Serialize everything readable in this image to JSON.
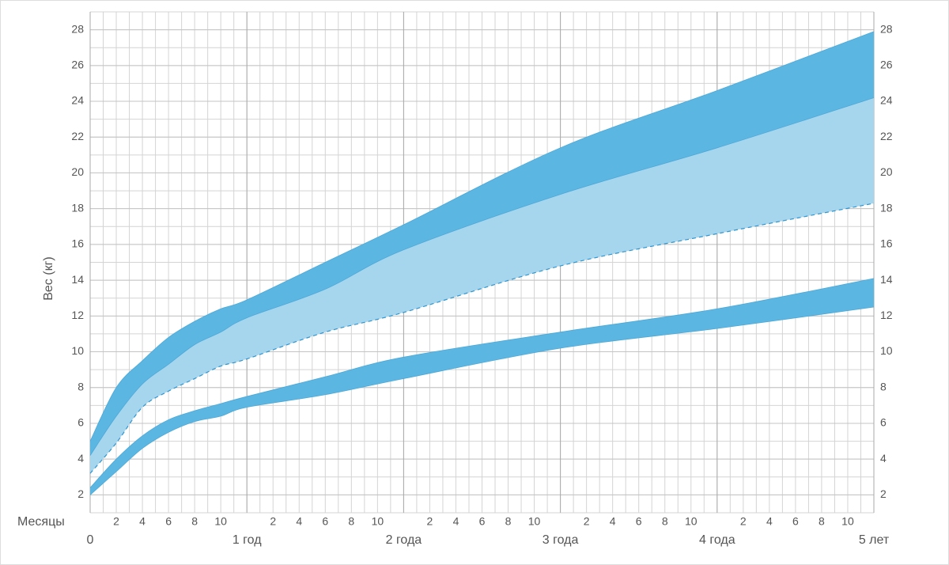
{
  "chart_data": {
    "type": "band-line",
    "ylabel": "Вес (кг)",
    "xlabel": "Месяцы",
    "x": [
      0,
      2,
      4,
      6,
      8,
      10,
      12,
      18,
      24,
      36,
      48,
      60
    ],
    "series": [
      {
        "color": "#4aa8d8",
        "fill": "#5cb6e2",
        "values": [
          5.0,
          8.0,
          9.5,
          10.8,
          11.7,
          12.4,
          12.9,
          15.0,
          17.1,
          21.4,
          24.6,
          27.9
        ]
      },
      {
        "color": "#4aa8d8",
        "fill": "#a6d5ee",
        "values": [
          4.2,
          6.4,
          8.2,
          9.3,
          10.4,
          11.1,
          11.9,
          13.5,
          15.7,
          18.8,
          21.4,
          24.2
        ]
      },
      {
        "color": "#2f95cf",
        "dashed": true,
        "values": [
          3.2,
          4.9,
          6.9,
          7.8,
          8.5,
          9.2,
          9.6,
          11.1,
          12.2,
          14.8,
          16.6,
          18.3
        ]
      },
      {
        "color": "#4aa8d8",
        "fill": "#5cb6e2",
        "values": [
          2.4,
          4.0,
          5.3,
          6.2,
          6.7,
          7.1,
          7.5,
          8.6,
          9.7,
          11.1,
          12.4,
          14.1
        ]
      },
      {
        "color": "#4aa8d8",
        "values": [
          2.0,
          3.3,
          4.6,
          5.5,
          6.1,
          6.4,
          6.9,
          7.6,
          8.5,
          10.2,
          11.3,
          12.5
        ]
      }
    ],
    "xlim": [
      0,
      60
    ],
    "ylim": [
      1,
      29
    ],
    "yticks": [
      2,
      4,
      6,
      8,
      10,
      12,
      14,
      16,
      18,
      20,
      22,
      24,
      26,
      28
    ],
    "xticks": [
      0,
      {
        "value": 12,
        "label": "1 год"
      },
      {
        "value": 24,
        "label": "2 года"
      },
      {
        "value": 36,
        "label": "3 года"
      },
      {
        "value": 48,
        "label": "4 года"
      },
      {
        "value": 60,
        "label": "5 лет"
      }
    ],
    "month_ticks": [
      2,
      4,
      6,
      8,
      10,
      {
        "value": 14,
        "label": "2"
      },
      {
        "value": 16,
        "label": "4"
      },
      {
        "value": 18,
        "label": "6"
      },
      {
        "value": 20,
        "label": "8"
      },
      {
        "value": 22,
        "label": "10"
      },
      {
        "value": 26,
        "label": "2"
      },
      {
        "value": 28,
        "label": "4"
      },
      {
        "value": 30,
        "label": "6"
      },
      {
        "value": 32,
        "label": "8"
      },
      {
        "value": 34,
        "label": "10"
      },
      {
        "value": 38,
        "label": "2"
      },
      {
        "value": 40,
        "label": "4"
      },
      {
        "value": 42,
        "label": "6"
      },
      {
        "value": 44,
        "label": "8"
      },
      {
        "value": 46,
        "label": "10"
      },
      {
        "value": 50,
        "label": "2"
      },
      {
        "value": 52,
        "label": "4"
      },
      {
        "value": 54,
        "label": "6"
      },
      {
        "value": 56,
        "label": "8"
      },
      {
        "value": 58,
        "label": "10"
      }
    ],
    "grid": true
  }
}
